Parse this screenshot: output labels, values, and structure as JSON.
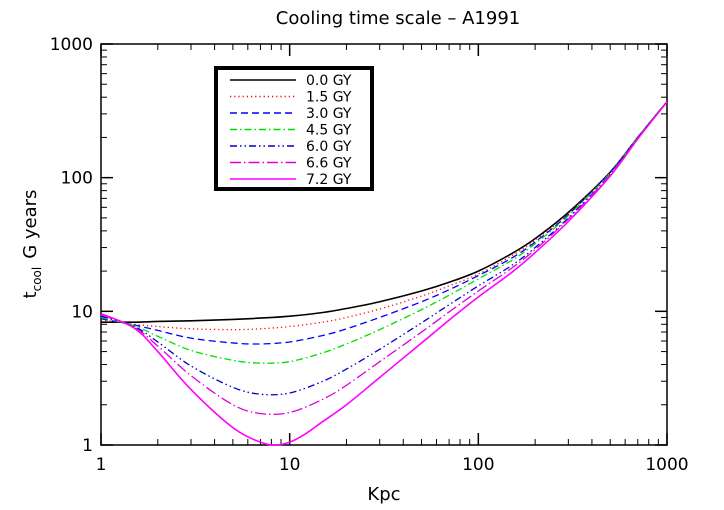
{
  "chart_data": {
    "type": "line",
    "title": "Cooling time scale   –   A1991",
    "xlabel": "Kpc",
    "ylabel_main": "t",
    "ylabel_sub": "cool",
    "ylabel_rest": "G years",
    "x_scale": "log",
    "y_scale": "log",
    "xlim": [
      1,
      1000
    ],
    "ylim": [
      1,
      1000
    ],
    "x_ticks": [
      {
        "value": 1,
        "label": "1"
      },
      {
        "value": 10,
        "label": "10"
      },
      {
        "value": 100,
        "label": "100"
      },
      {
        "value": 1000,
        "label": "1000"
      }
    ],
    "y_ticks": [
      {
        "value": 1,
        "label": "1"
      },
      {
        "value": 10,
        "label": "10"
      },
      {
        "value": 100,
        "label": "100"
      },
      {
        "value": 1000,
        "label": "1000"
      }
    ],
    "grid": false,
    "legend_position": "top-left",
    "series": [
      {
        "name": "0.0  GY",
        "color": "#000000",
        "dash": "solid",
        "x": [
          1,
          1.5,
          2,
          3,
          5,
          7,
          10,
          15,
          20,
          30,
          50,
          70,
          100,
          150,
          200,
          300,
          500,
          700,
          1000
        ],
        "y": [
          8.3,
          8.3,
          8.4,
          8.5,
          8.7,
          8.9,
          9.2,
          9.8,
          10.5,
          11.8,
          14.2,
          16.5,
          20,
          27,
          35,
          55,
          110,
          200,
          370
        ]
      },
      {
        "name": "1.5  GY",
        "color": "#ff0000",
        "dash": "dotted",
        "x": [
          1,
          1.5,
          2,
          3,
          5,
          7,
          10,
          15,
          20,
          30,
          50,
          70,
          100,
          150,
          200,
          300,
          500,
          700,
          1000
        ],
        "y": [
          8.6,
          8.0,
          7.7,
          7.4,
          7.3,
          7.4,
          7.7,
          8.3,
          9.0,
          10.4,
          13.0,
          15.5,
          19,
          26,
          34,
          54,
          110,
          200,
          370
        ]
      },
      {
        "name": "3.0  GY",
        "color": "#0000ff",
        "dash": "dashed",
        "x": [
          1,
          1.5,
          2,
          3,
          5,
          7,
          10,
          15,
          20,
          30,
          50,
          70,
          100,
          150,
          200,
          300,
          500,
          700,
          1000
        ],
        "y": [
          8.8,
          7.9,
          7.2,
          6.3,
          5.8,
          5.7,
          5.9,
          6.6,
          7.4,
          9.0,
          11.8,
          14.5,
          18.5,
          25,
          33,
          53,
          110,
          200,
          370
        ]
      },
      {
        "name": "4.5  GY",
        "color": "#00dd00",
        "dash": "dashdot",
        "x": [
          1,
          1.5,
          2,
          3,
          5,
          7,
          10,
          15,
          20,
          30,
          50,
          70,
          100,
          150,
          200,
          300,
          500,
          700,
          1000
        ],
        "y": [
          9.0,
          7.8,
          6.5,
          5.1,
          4.3,
          4.1,
          4.2,
          4.9,
          5.7,
          7.3,
          10.3,
          13.2,
          17.5,
          24,
          32,
          52,
          108,
          200,
          370
        ]
      },
      {
        "name": "6.0  GY",
        "color": "#0000cc",
        "dash": "dashdotdot",
        "x": [
          1,
          1.5,
          2,
          3,
          5,
          7,
          10,
          15,
          20,
          30,
          50,
          70,
          100,
          150,
          200,
          300,
          500,
          700,
          1000
        ],
        "y": [
          9.2,
          7.7,
          5.9,
          3.9,
          2.7,
          2.4,
          2.45,
          3.0,
          3.7,
          5.2,
          8.2,
          11.2,
          15.5,
          22,
          30,
          50,
          106,
          198,
          370
        ]
      },
      {
        "name": "6.6  GY",
        "color": "#dd00dd",
        "dash": "longdashdot",
        "x": [
          1,
          1.5,
          2,
          3,
          5,
          7,
          10,
          15,
          20,
          30,
          50,
          70,
          100,
          150,
          200,
          300,
          500,
          700,
          1000
        ],
        "y": [
          9.4,
          7.6,
          5.5,
          3.3,
          2.0,
          1.72,
          1.75,
          2.2,
          2.8,
          4.2,
          7.0,
          9.9,
          14.2,
          21,
          29,
          49,
          105,
          197,
          370
        ]
      },
      {
        "name": "7.2  GY",
        "color": "#ff00ff",
        "dash": "solid",
        "x": [
          1,
          1.5,
          2,
          3,
          5,
          7,
          8.5,
          10,
          12,
          15,
          20,
          30,
          50,
          70,
          100,
          150,
          200,
          300,
          500,
          700,
          1000
        ],
        "y": [
          9.6,
          7.5,
          5.0,
          2.6,
          1.35,
          1.05,
          1.0,
          1.05,
          1.2,
          1.5,
          2.0,
          3.2,
          5.8,
          8.6,
          12.8,
          19.5,
          27.5,
          47,
          103,
          195,
          370
        ]
      }
    ]
  }
}
